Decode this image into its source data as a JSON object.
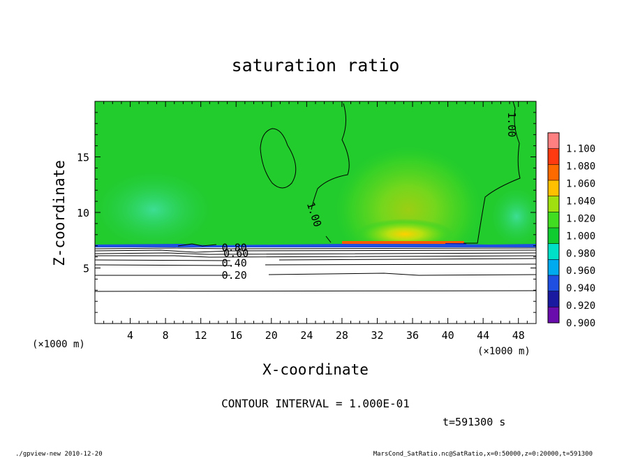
{
  "chart_data": {
    "type": "heatmap",
    "title": "saturation ratio",
    "xlabel": "X-coordinate",
    "ylabel": "Z-coordinate",
    "x_unit_left": "(×1000 m)",
    "x_unit_right": "(×1000 m)",
    "xlim": [
      0,
      50
    ],
    "ylim": [
      0,
      20
    ],
    "x_ticks": [
      4,
      8,
      12,
      16,
      20,
      24,
      28,
      32,
      36,
      40,
      44,
      48
    ],
    "y_ticks": [
      5,
      10,
      15
    ],
    "colorbar": {
      "levels": [
        "0.900",
        "0.920",
        "0.940",
        "0.960",
        "0.980",
        "1.000",
        "1.020",
        "1.040",
        "1.060",
        "1.080",
        "1.100"
      ],
      "colors": [
        "#6a0dad",
        "#1a1aa0",
        "#1f4fe0",
        "#00aaee",
        "#00e0c8",
        "#10cc30",
        "#40dd20",
        "#a0e010",
        "#ffc000",
        "#ff6a00",
        "#ff3a10",
        "#ff8080"
      ]
    },
    "contour_labels": [
      {
        "text": "1.00",
        "x": 24.8,
        "z": 9.8,
        "rot": 72
      },
      {
        "text": "1.00",
        "x": 47.2,
        "z": 17.9,
        "rot": 90
      },
      {
        "text": "0.80",
        "x": 15.8,
        "z": 6.8,
        "rot": 0
      },
      {
        "text": "0.60",
        "x": 16.0,
        "z": 6.3,
        "rot": 0
      },
      {
        "text": "0.40",
        "x": 15.8,
        "z": 5.4,
        "rot": 0
      },
      {
        "text": "0.20",
        "x": 15.8,
        "z": 4.3,
        "rot": 0
      }
    ],
    "contour_interval_text": "CONTOUR INTERVAL = 1.000E-01",
    "time_text": "t=591300 s"
  },
  "footer": {
    "left": "./gpview-new   2010-12-20",
    "right": "MarsCond_SatRatio.nc@SatRatio,x=0:50000,z=0:20000,t=591300"
  }
}
